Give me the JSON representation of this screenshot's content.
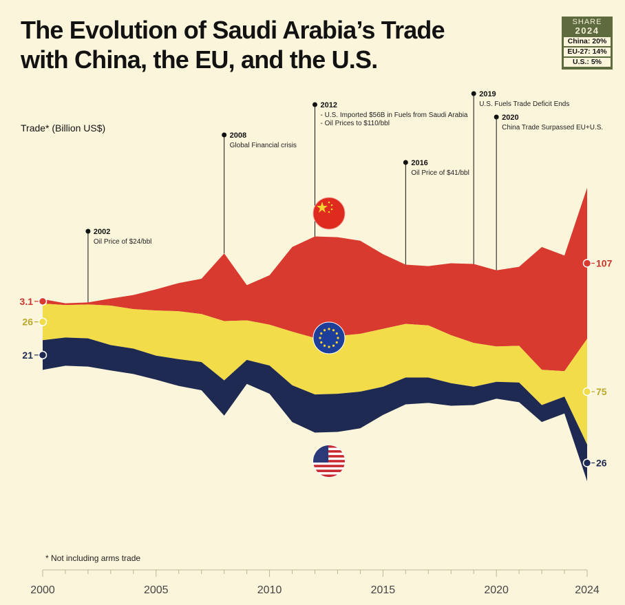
{
  "title_line1": "The Evolution of Saudi Arabia’s Trade",
  "title_line2": "with China, the EU, and the U.S.",
  "share": {
    "header": "SHARE",
    "year": "2024",
    "china": "China: 20%",
    "eu": "EU-27: 14%",
    "us": "U.S.: 5%"
  },
  "y_axis_label": "Trade* (Billion US$)",
  "footnote": "* Not including arms trade",
  "colors": {
    "background": "#fbf5dc",
    "china": "#d93a2f",
    "eu": "#f3dc4a",
    "us": "#1f2a52",
    "china_label": "#c9342b",
    "eu_label": "#b9a72a",
    "us_label": "#1f2a52"
  },
  "icons": {
    "china_flag": "china-flag-icon",
    "eu_flag": "eu-flag-icon",
    "us_flag": "us-flag-icon"
  },
  "chart_data": {
    "type": "area",
    "subtype": "streamgraph",
    "title": "The Evolution of Saudi Arabia’s Trade with China, the EU, and the U.S.",
    "ylabel": "Trade* (Billion US$)",
    "x": [
      2000,
      2001,
      2002,
      2003,
      2004,
      2005,
      2006,
      2007,
      2008,
      2009,
      2010,
      2011,
      2012,
      2013,
      2014,
      2015,
      2016,
      2017,
      2018,
      2019,
      2020,
      2021,
      2022,
      2023,
      2024
    ],
    "x_tick_labels": [
      "2000",
      "2005",
      "2010",
      "2015",
      "2020",
      "2024"
    ],
    "x_tick_values": [
      2000,
      2005,
      2010,
      2015,
      2020,
      2024
    ],
    "series": [
      {
        "name": "U.S.",
        "color": "#1f2a52",
        "values": [
          21,
          20,
          20,
          18,
          18,
          17,
          19,
          20,
          25,
          17,
          20,
          26,
          27,
          27,
          26,
          20,
          19,
          18,
          16,
          13,
          12,
          14,
          12,
          12,
          26
        ]
      },
      {
        "name": "EU-27",
        "color": "#f3dc4a",
        "values": [
          26,
          23,
          24,
          28,
          28,
          32,
          34,
          34,
          42,
          28,
          29,
          38,
          40,
          41,
          41,
          41,
          38,
          37,
          34,
          31,
          25,
          26,
          25,
          18,
          75
        ]
      },
      {
        "name": "China",
        "color": "#d93a2f",
        "values": [
          3.1,
          1.3,
          1.5,
          5,
          10,
          15,
          20,
          25,
          48,
          25,
          35,
          60,
          72,
          70,
          66,
          53,
          42,
          42,
          51,
          56,
          54,
          56,
          87,
          82,
          107
        ]
      }
    ],
    "start_labels": {
      "China": "3.1",
      "EU-27": "26",
      "U.S.": "21"
    },
    "end_labels": {
      "China": "107",
      "EU-27": "75",
      "U.S.": "26"
    },
    "annotations": [
      {
        "x": 2002,
        "year": "2002",
        "lines": [
          "Oil Price of $24/bbl"
        ]
      },
      {
        "x": 2008,
        "year": "2008",
        "lines": [
          "Global Financial crisis"
        ]
      },
      {
        "x": 2012,
        "year": "2012",
        "lines": [
          "- U.S. Imported $56B in Fuels from Saudi Arabia",
          "- Oil Prices to $110/bbl"
        ]
      },
      {
        "x": 2016,
        "year": "2016",
        "lines": [
          "Oil Price of $41/bbl"
        ]
      },
      {
        "x": 2019,
        "year": "2019",
        "lines": [
          "U.S. Fuels Trade Deficit Ends"
        ]
      },
      {
        "x": 2020,
        "year": "2020",
        "lines": [
          "China Trade Surpassed EU+U.S."
        ]
      }
    ]
  }
}
